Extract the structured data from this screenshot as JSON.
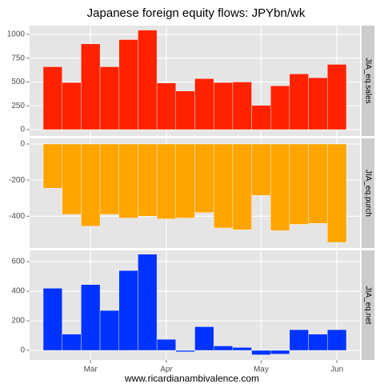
{
  "chart_data": {
    "type": "bar",
    "title": "Japanese foreign equity flows: JPYbn/wk",
    "caption": "www.ricardianambivalence.com",
    "categories": [
      null,
      null,
      "Mar",
      null,
      null,
      null,
      "Apr",
      null,
      null,
      null,
      null,
      "May",
      null,
      null,
      null,
      "Jun"
    ],
    "grid": true,
    "series": [
      {
        "name": "JIA_eq.sales",
        "color": "#ff2200",
        "values": [
          660,
          495,
          900,
          660,
          945,
          1045,
          490,
          405,
          535,
          495,
          500,
          255,
          460,
          585,
          545,
          685
        ],
        "ylim": [
          -67,
          1092
        ],
        "yticks": [
          0,
          250,
          500,
          750,
          1000
        ]
      },
      {
        "name": "JIA_eq.purch",
        "color": "#ffa500",
        "values": [
          -245,
          -390,
          -455,
          -390,
          -410,
          -400,
          -415,
          -410,
          -380,
          -465,
          -475,
          -285,
          -480,
          -445,
          -440,
          -545
        ],
        "ylim": [
          -576,
          31
        ],
        "yticks": [
          -400,
          -200,
          0
        ]
      },
      {
        "name": "JIA_eq.net",
        "color": "#0033ff",
        "values": [
          420,
          110,
          445,
          270,
          540,
          650,
          75,
          -10,
          160,
          30,
          20,
          -30,
          -25,
          140,
          110,
          140
        ],
        "ylim": [
          -65,
          676
        ],
        "yticks": [
          0,
          200,
          400,
          600
        ]
      }
    ]
  }
}
